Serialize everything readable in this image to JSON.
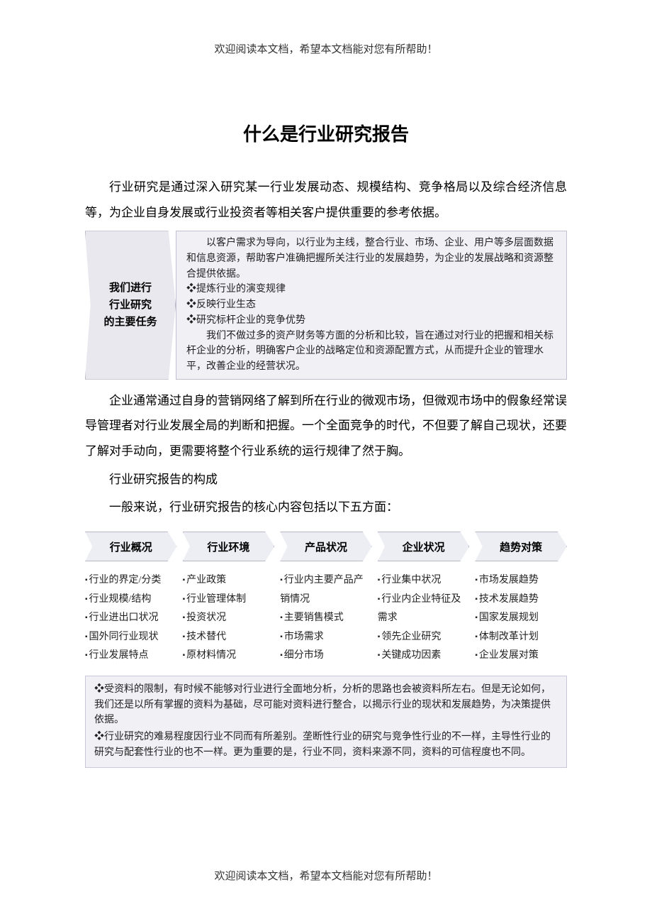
{
  "header_note": "欢迎阅读本文档，希望本文档能对您有所帮助！",
  "footer_note": "欢迎阅读本文档，希望本文档能对您有所帮助！",
  "title": "什么是行业研究报告",
  "para1": "行业研究是通过深入研究某一行业发展动态、规模结构、竞争格局以及综合经济信息等，为企业自身发展或行业投资者等相关客户提供重要的参考依据。",
  "block1": {
    "left_line1": "我们进行",
    "left_line2": "行业研究",
    "left_line3": "的主要任务",
    "r1": "以客户需求为导向，以行业为主线，整合行业、市场、企业、用户等多层面数据和信息资源，帮助客户准确把握所关注行业的发展趋势，为企业的发展战略和资源整合提供依据。",
    "b1": "❖提炼行业的演变规律",
    "b2": "❖反映行业生态",
    "b3": "❖研究标杆企业的竞争优势",
    "r2": "我们不做过多的资产财务等方面的分析和比较，旨在通过对行业的把握和相关标杆企业的分析，明确客户企业的战略定位和资源配置方式，从而提升企业的管理水平，改善企业的经营状况。"
  },
  "para2": "企业通常通过自身的营销网络了解到所在行业的微观市场，但微观市场中的假象经常误导管理者对行业发展全局的判断和把握。一个全面竞争的时代，不但要了解自己现状，还要了解对手动向，更需要将整个行业系统的运行规律了然于胸。",
  "para3": "行业研究报告的构成",
  "para4": "一般来说，行业研究报告的核心内容包括以下五方面：",
  "arrows": [
    "行业概况",
    "行业环境",
    "产品状况",
    "企业状况",
    "趋势对策"
  ],
  "cols": [
    [
      "行业的界定/分类",
      "行业规模/结构",
      "行业进出口状况",
      "国外同行业现状",
      "行业发展特点"
    ],
    [
      "产业政策",
      "行业管理体制",
      "投资状况",
      "技术替代",
      "原材料情况"
    ],
    [
      "行业内主要产品产销情况",
      "主要销售模式",
      "市场需求",
      "细分市场"
    ],
    [
      "行业集中状况",
      "行业内企业特征及需求",
      "领先企业研究",
      "关键成功因素"
    ],
    [
      "市场发展趋势",
      "技术发展趋势",
      "国家发展规划",
      "体制改革计划",
      "企业发展对策"
    ]
  ],
  "notes": [
    "❖受资料的限制，有时候不能够对行业进行全面地分析，分析的思路也会被资料所左右。但是无论如何，我们还是以所有掌握的资料为基础，尽可能对资料进行整合，以揭示行业的现状和发展趋势，为决策提供依据。",
    "❖行业研究的难易程度因行业不同而有所差别。垄断性行业的研究与竞争性行业的不一样，主导性行业的研究与配套性行业的也不一样。更为重要的是，行业不同，资料来源不同，资料的可信程度也不同。"
  ],
  "colors": {
    "box_bg": "#f0f0f5",
    "box_border": "#c0c0d0",
    "arrow_bg": "#eceef4",
    "left_bg": "#e8e8ee"
  }
}
